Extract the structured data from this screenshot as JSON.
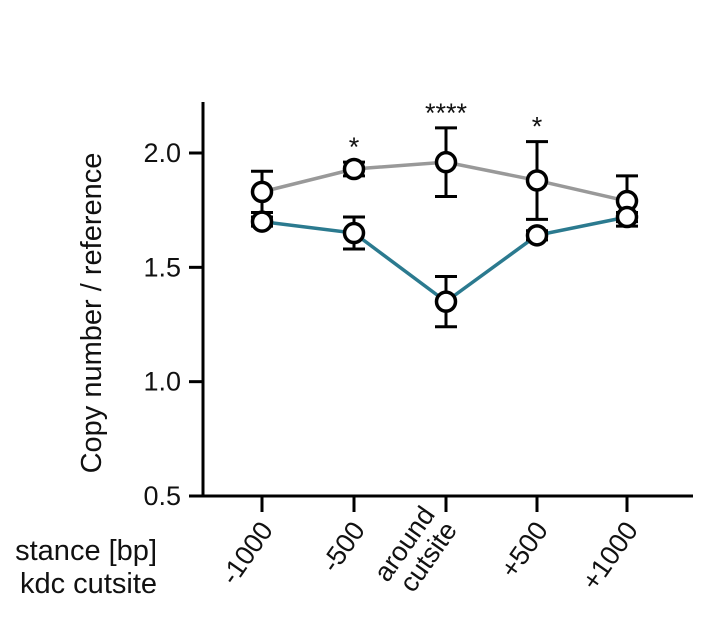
{
  "chart_data": {
    "type": "line",
    "title": "",
    "ylabel": "Copy number / reference",
    "xlabel_lines": [
      "stance [bp]",
      "kdc cutsite"
    ],
    "ylim": [
      0.5,
      2.2
    ],
    "yticks": [
      0.5,
      1.0,
      1.5,
      2.0
    ],
    "ytick_labels": [
      "0.5",
      "1.0",
      "1.5",
      "2.0"
    ],
    "categories": [
      "-1000",
      "-500",
      "around cutsite",
      "+500",
      "+1000"
    ],
    "category_label_lines": [
      [
        "-1000"
      ],
      [
        "-500"
      ],
      [
        "around",
        "cutsite"
      ],
      [
        "+500"
      ],
      [
        "+1000"
      ]
    ],
    "series": [
      {
        "color": "#999999",
        "values": [
          1.83,
          1.93,
          1.96,
          1.88,
          1.79
        ],
        "errors": [
          0.09,
          0.03,
          0.15,
          0.17,
          0.11
        ]
      },
      {
        "color": "#2b7a8f",
        "values": [
          1.7,
          1.65,
          1.35,
          1.64,
          1.72
        ],
        "errors": [
          0.02,
          0.07,
          0.11,
          0.02,
          0.02
        ]
      }
    ],
    "significance": [
      "",
      "*",
      "****",
      "*",
      ""
    ],
    "grid": false,
    "legend": "none"
  }
}
